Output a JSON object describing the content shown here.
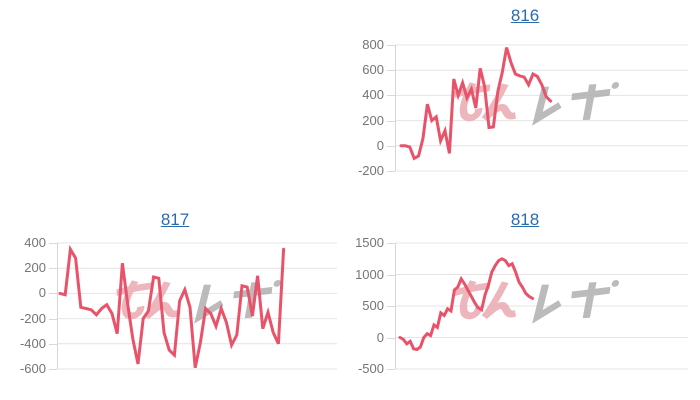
{
  "page": {
    "background": "#ffffff",
    "description_labels": []
  },
  "watermark": {
    "text": "みんレポ",
    "part_pink": "みん",
    "part_gray": "レポ"
  },
  "colors": {
    "line": "#e9536a",
    "grid": "#e4e4e4",
    "axis_line": "#d6d6d6",
    "tick": "#d9d9d9",
    "axis_label": "#757575",
    "title_link": "#2b6cab",
    "watermark_pink": "#ecaeb5",
    "watermark_gray": "#b4b4b4"
  },
  "chart_data": [
    {
      "type": "line",
      "title": "816",
      "position": "top-right",
      "grid": true,
      "legend": "none",
      "xlabel": "",
      "ylabel": "",
      "yticks": [
        800,
        600,
        400,
        200,
        0,
        -200
      ],
      "ylim": [
        -200,
        800
      ],
      "x_start": 6,
      "x_step": 4.4,
      "values": [
        0,
        0,
        -10,
        -100,
        -80,
        60,
        330,
        200,
        230,
        40,
        120,
        -60,
        530,
        400,
        500,
        380,
        450,
        300,
        615,
        470,
        145,
        150,
        430,
        580,
        780,
        660,
        570,
        555,
        545,
        485,
        570,
        550,
        485,
        390,
        355
      ]
    },
    {
      "type": "line",
      "title": "817",
      "position": "bottom-left",
      "grid": true,
      "legend": "none",
      "xlabel": "",
      "ylabel": "",
      "yticks": [
        400,
        200,
        0,
        -200,
        -400,
        -600
      ],
      "ylim": [
        -600,
        400
      ],
      "x_start": 3,
      "x_step": 5.2,
      "values": [
        0,
        -10,
        350,
        280,
        -110,
        -120,
        -130,
        -170,
        -120,
        -90,
        -160,
        -320,
        240,
        -80,
        -360,
        -560,
        -200,
        -140,
        130,
        120,
        -310,
        -450,
        -490,
        -60,
        30,
        -110,
        -590,
        -390,
        -120,
        -160,
        -260,
        -120,
        -230,
        -410,
        -330,
        60,
        50,
        -180,
        140,
        -280,
        -150,
        -310,
        -400,
        350
      ]
    },
    {
      "type": "line",
      "title": "818",
      "position": "bottom-right",
      "grid": true,
      "legend": "none",
      "xlabel": "",
      "ylabel": "",
      "yticks": [
        1500,
        1000,
        500,
        0,
        -500
      ],
      "ylim": [
        -500,
        1500
      ],
      "x_start": 5,
      "x_step": 3.4,
      "values": [
        0,
        -30,
        -100,
        -60,
        -180,
        -190,
        -150,
        0,
        60,
        30,
        200,
        160,
        390,
        350,
        455,
        420,
        755,
        800,
        930,
        850,
        750,
        650,
        550,
        470,
        440,
        675,
        830,
        1040,
        1140,
        1220,
        1250,
        1220,
        1140,
        1170,
        1040,
        880,
        800,
        700,
        650,
        620
      ]
    }
  ]
}
